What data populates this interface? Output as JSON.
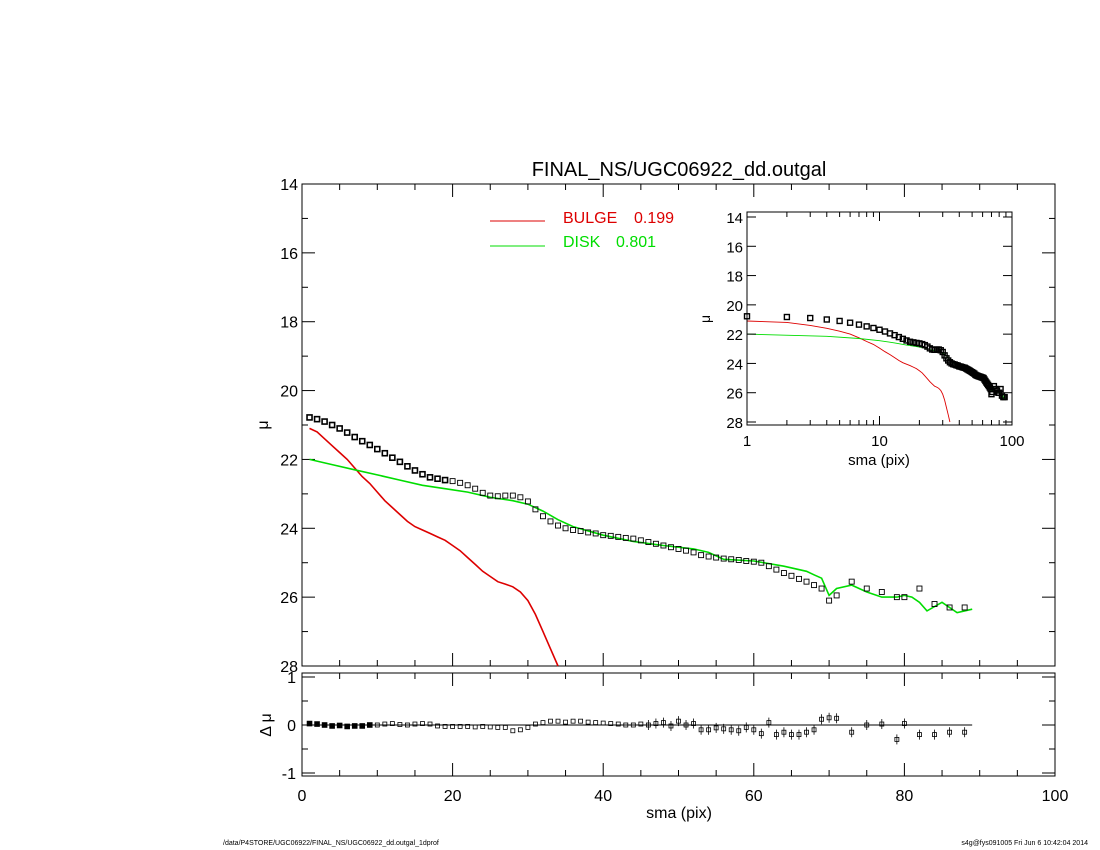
{
  "title": "FINAL_NS/UGC06922_dd.outgal",
  "footer_left": "/data/P4STORE/UGC06922/FINAL_NS/UGC06922_dd.outgal_1dprof",
  "footer_right": "s4g@fys091005  Fri Jun  6 10:42:04 2014",
  "colors": {
    "bulge": "#dd0000",
    "disk": "#00dd00",
    "data": "#000000"
  },
  "chart_data": [
    {
      "name": "main",
      "type": "scatter",
      "ylabel": "μ",
      "xlim": [
        0,
        100
      ],
      "ylim": [
        28,
        14
      ],
      "yticks": [
        14,
        16,
        18,
        20,
        22,
        24,
        26,
        28
      ],
      "legend": [
        {
          "label": "BULGE",
          "value": "0.199",
          "color": "#dd0000"
        },
        {
          "label": "DISK",
          "value": "0.801",
          "color": "#00dd00"
        }
      ],
      "legend_placement": "top-center",
      "data_points": {
        "x": [
          1,
          2,
          3,
          4,
          5,
          6,
          7,
          8,
          9,
          10,
          11,
          12,
          13,
          14,
          15,
          16,
          17,
          18,
          19,
          20,
          21,
          22,
          23,
          24,
          25,
          26,
          27,
          28,
          29,
          30,
          31,
          32,
          33,
          34,
          35,
          36,
          37,
          38,
          39,
          40,
          41,
          42,
          43,
          44,
          45,
          46,
          47,
          48,
          49,
          50,
          51,
          52,
          53,
          54,
          55,
          56,
          57,
          58,
          59,
          60,
          61,
          62,
          63,
          64,
          65,
          66,
          67,
          68,
          69,
          70,
          71,
          73,
          75,
          77,
          79,
          80,
          82,
          84,
          86,
          88
        ],
        "y": [
          20.78,
          20.83,
          20.9,
          21.0,
          21.1,
          21.22,
          21.35,
          21.47,
          21.58,
          21.7,
          21.82,
          21.95,
          22.07,
          22.2,
          22.32,
          22.43,
          22.52,
          22.56,
          22.6,
          22.63,
          22.68,
          22.75,
          22.85,
          22.97,
          23.05,
          23.07,
          23.05,
          23.05,
          23.1,
          23.22,
          23.45,
          23.65,
          23.8,
          23.92,
          24.0,
          24.05,
          24.08,
          24.12,
          24.15,
          24.2,
          24.22,
          24.25,
          24.28,
          24.3,
          24.35,
          24.4,
          24.45,
          24.5,
          24.55,
          24.6,
          24.65,
          24.7,
          24.78,
          24.82,
          24.85,
          24.88,
          24.9,
          24.92,
          24.95,
          24.97,
          25.0,
          25.1,
          25.2,
          25.3,
          25.38,
          25.47,
          25.55,
          25.65,
          25.75,
          26.1,
          25.95,
          25.55,
          25.75,
          25.85,
          26.0,
          26.0,
          25.75,
          26.2,
          26.3,
          26.3
        ]
      },
      "bulge_curve": {
        "x": [
          1,
          2,
          3,
          4,
          5,
          6,
          7,
          8,
          9,
          10,
          11,
          12,
          13,
          14,
          15,
          16,
          17,
          18,
          19,
          20,
          21,
          22,
          23,
          24,
          25,
          26,
          27,
          28,
          29,
          30,
          31,
          32,
          33,
          34
        ],
        "y": [
          21.1,
          21.2,
          21.4,
          21.6,
          21.8,
          22.0,
          22.25,
          22.5,
          22.7,
          22.95,
          23.2,
          23.4,
          23.6,
          23.8,
          23.95,
          24.05,
          24.15,
          24.25,
          24.35,
          24.5,
          24.65,
          24.85,
          25.05,
          25.25,
          25.4,
          25.55,
          25.62,
          25.7,
          25.85,
          26.1,
          26.5,
          27.0,
          27.5,
          28.0
        ]
      },
      "disk_curve": {
        "x": [
          1,
          4,
          7,
          10,
          13,
          16,
          19,
          22,
          25,
          28,
          30,
          32,
          34,
          36,
          40,
          44,
          48,
          52,
          54,
          56,
          60,
          64,
          67,
          68,
          69,
          70,
          71,
          73,
          75,
          77,
          79,
          80,
          81,
          82,
          83,
          85,
          87,
          89
        ],
        "y": [
          22.0,
          22.15,
          22.3,
          22.45,
          22.6,
          22.75,
          22.85,
          22.95,
          23.1,
          23.2,
          23.3,
          23.5,
          23.75,
          23.95,
          24.2,
          24.38,
          24.5,
          24.6,
          24.7,
          24.9,
          24.95,
          25.1,
          25.25,
          25.35,
          25.45,
          25.95,
          25.75,
          25.65,
          25.85,
          26.0,
          26.0,
          25.95,
          26.0,
          26.15,
          26.4,
          26.15,
          26.45,
          26.35
        ]
      }
    },
    {
      "name": "residual",
      "type": "scatter",
      "xlabel": "sma (pix)",
      "ylabel": "Δ μ",
      "xlim": [
        0,
        100
      ],
      "ylim": [
        -1,
        1
      ],
      "xticks": [
        0,
        20,
        40,
        60,
        80,
        100
      ],
      "yticks": [
        1,
        0,
        -1
      ],
      "residuals": {
        "x": [
          1,
          2,
          3,
          4,
          5,
          6,
          7,
          8,
          9,
          10,
          11,
          12,
          13,
          14,
          15,
          16,
          17,
          18,
          19,
          20,
          21,
          22,
          23,
          24,
          25,
          26,
          27,
          28,
          29,
          30,
          31,
          32,
          33,
          34,
          35,
          36,
          37,
          38,
          39,
          40,
          41,
          42,
          43,
          44,
          45,
          46,
          47,
          48,
          49,
          50,
          51,
          52,
          53,
          54,
          55,
          56,
          57,
          58,
          59,
          60,
          61,
          62,
          63,
          64,
          65,
          66,
          67,
          68,
          69,
          70,
          71,
          73,
          75,
          77,
          79,
          80,
          82,
          84,
          86,
          88
        ],
        "y": [
          0.03,
          0.02,
          0.0,
          -0.02,
          -0.01,
          -0.03,
          -0.02,
          -0.02,
          0.0,
          0.0,
          0.02,
          0.03,
          0.01,
          0.0,
          0.02,
          0.03,
          0.02,
          -0.02,
          -0.03,
          -0.03,
          -0.03,
          -0.03,
          -0.04,
          -0.03,
          -0.04,
          -0.05,
          -0.05,
          -0.12,
          -0.1,
          -0.05,
          0.02,
          0.05,
          0.08,
          0.08,
          0.06,
          0.08,
          0.08,
          0.06,
          0.05,
          0.04,
          0.03,
          0.02,
          0.0,
          0.0,
          0.02,
          0.0,
          0.03,
          0.05,
          -0.02,
          0.08,
          0.0,
          0.03,
          -0.1,
          -0.1,
          -0.06,
          -0.08,
          -0.1,
          -0.12,
          -0.05,
          -0.1,
          -0.18,
          0.05,
          -0.2,
          -0.15,
          -0.2,
          -0.2,
          -0.15,
          -0.1,
          0.12,
          0.15,
          0.14,
          -0.15,
          0.0,
          0.02,
          -0.3,
          0.03,
          -0.2,
          -0.2,
          -0.15,
          -0.15
        ]
      }
    },
    {
      "name": "inset",
      "type": "line",
      "xlabel": "sma (pix)",
      "ylabel": "μ",
      "xscale": "log",
      "xlim": [
        1,
        100
      ],
      "ylim": [
        28,
        14
      ],
      "xticks": [
        1,
        10,
        100
      ],
      "yticks": [
        14,
        16,
        18,
        20,
        22,
        24,
        26,
        28
      ]
    }
  ]
}
